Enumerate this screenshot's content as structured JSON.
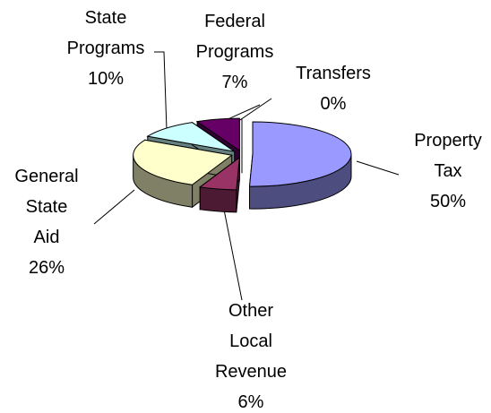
{
  "chart_data": {
    "type": "pie3d",
    "categories": [
      "Property Tax",
      "Other Local Revenue",
      "General State Aid",
      "State Programs",
      "Federal Programs",
      "Transfers"
    ],
    "values": [
      50,
      6,
      26,
      10,
      7,
      0
    ],
    "value_labels": [
      "50%",
      "6%",
      "26%",
      "10%",
      "7%",
      "0%"
    ],
    "colors": [
      "#9999ff",
      "#993366",
      "#ffffcc",
      "#ccffff",
      "#660066",
      "#ff8080"
    ]
  }
}
